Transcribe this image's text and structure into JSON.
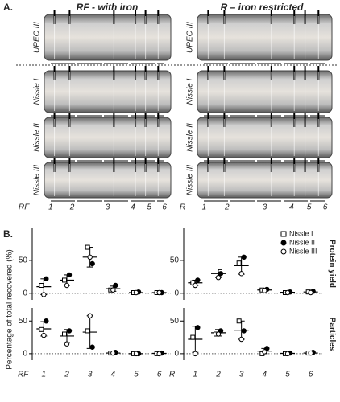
{
  "panel_a": {
    "label": "A.",
    "columns": [
      "RF - with iron",
      "R – iron restricted"
    ],
    "rows": [
      "UPEC III",
      "Nissle I",
      "Nissle II",
      "Nissle III"
    ],
    "lane_labels": [
      {
        "prefix": "RF",
        "lanes": [
          "1",
          "2",
          "3",
          "4",
          "5",
          "6"
        ]
      },
      {
        "prefix": "R",
        "lanes": [
          "1",
          "2",
          "3",
          "4",
          "5",
          "6"
        ]
      }
    ]
  },
  "panel_b": {
    "label": "B.",
    "ylabel": "Percentage of total recovered (%)"
  },
  "chart_data": [
    {
      "type": "scatter",
      "ylim": [
        -10,
        100
      ],
      "yticks": [
        0,
        50
      ],
      "zero_line": true,
      "series": [
        {
          "marker": "square-open",
          "values": [
            12,
            20,
            70,
            5,
            1,
            1
          ]
        },
        {
          "marker": "circle-filled",
          "values": [
            22,
            28,
            45,
            12,
            2,
            1
          ]
        },
        {
          "marker": "circle-open",
          "values": [
            -2,
            12,
            55,
            5,
            1,
            1
          ]
        }
      ],
      "mean": [
        10,
        20,
        55,
        7,
        1,
        1
      ],
      "sd": [
        12,
        8,
        15,
        4,
        1,
        0.5
      ]
    },
    {
      "type": "scatter",
      "ylim": [
        -10,
        100
      ],
      "yticks": [
        0,
        50
      ],
      "zero_line": true,
      "side_label": "Protein yield",
      "legend": "top-right",
      "series": [
        {
          "name": "Nissle I",
          "marker": "square-open",
          "values": [
            16,
            34,
            46,
            5,
            1,
            2
          ]
        },
        {
          "name": "Nissle II",
          "marker": "circle-filled",
          "values": [
            20,
            30,
            55,
            6,
            2,
            3
          ]
        },
        {
          "name": "Nissle III",
          "marker": "circle-open",
          "values": [
            12,
            24,
            30,
            4,
            1,
            1
          ]
        }
      ],
      "mean": [
        16,
        30,
        42,
        5,
        1.5,
        2
      ],
      "sd": [
        4,
        6,
        13,
        1,
        1,
        1
      ]
    },
    {
      "type": "scatter",
      "ylim": [
        -10,
        70
      ],
      "yticks": [
        0,
        50
      ],
      "zero_line": true,
      "xlabel": "RF",
      "categories": [
        "1",
        "2",
        "3",
        "4",
        "5",
        "6"
      ],
      "series": [
        {
          "marker": "square-open",
          "values": [
            37,
            30,
            35,
            1,
            0,
            0
          ]
        },
        {
          "marker": "circle-filled",
          "values": [
            50,
            35,
            10,
            2,
            0,
            1
          ]
        },
        {
          "marker": "circle-open",
          "values": [
            28,
            15,
            58,
            1,
            0,
            0
          ]
        }
      ],
      "mean": [
        38,
        27,
        33,
        1,
        0,
        0.5
      ],
      "sd": [
        11,
        10,
        25,
        1,
        0.5,
        0.5
      ]
    },
    {
      "type": "scatter",
      "ylim": [
        -10,
        70
      ],
      "yticks": [
        0,
        50
      ],
      "zero_line": true,
      "side_label": "Particles",
      "xlabel": "R",
      "categories": [
        "1",
        "2",
        "3",
        "4",
        "5",
        "6"
      ],
      "series": [
        {
          "marker": "square-open",
          "values": [
            25,
            30,
            50,
            0,
            0,
            1
          ]
        },
        {
          "marker": "circle-filled",
          "values": [
            40,
            35,
            35,
            8,
            1,
            2
          ]
        },
        {
          "marker": "circle-open",
          "values": [
            0,
            30,
            22,
            3,
            0,
            1
          ]
        }
      ],
      "mean": [
        22,
        32,
        36,
        4,
        0.5,
        1
      ],
      "sd": [
        20,
        5,
        14,
        4,
        0.5,
        0.5
      ]
    }
  ]
}
